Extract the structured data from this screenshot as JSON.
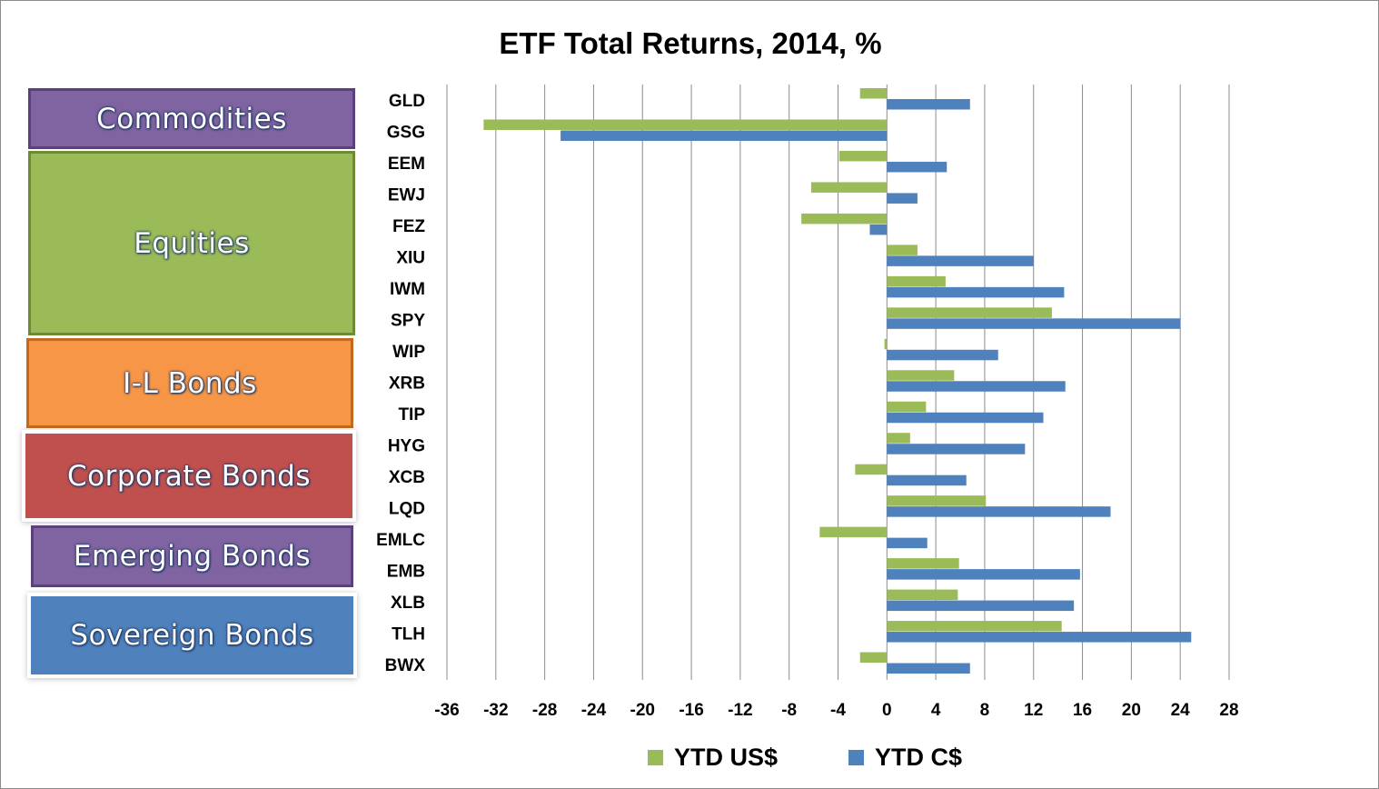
{
  "chart_data": {
    "type": "bar",
    "orientation": "horizontal",
    "title": "ETF Total Returns, 2014, %",
    "categories": [
      "GLD",
      "GSG",
      "EEM",
      "EWJ",
      "FEZ",
      "XIU",
      "IWM",
      "SPY",
      "WIP",
      "XRB",
      "TIP",
      "HYG",
      "XCB",
      "LQD",
      "EMLC",
      "EMB",
      "XLB",
      "TLH",
      "BWX"
    ],
    "series": [
      {
        "name": "YTD US$",
        "color": "#9bbb59",
        "values": [
          -2.2,
          -33.0,
          -3.9,
          -6.2,
          -7.0,
          2.5,
          4.8,
          13.5,
          -0.2,
          5.5,
          3.2,
          1.9,
          -2.6,
          8.1,
          -5.5,
          5.9,
          5.8,
          14.3,
          -2.2
        ]
      },
      {
        "name": "YTD C$",
        "color": "#4f81bd",
        "values": [
          6.8,
          -26.7,
          4.9,
          2.5,
          -1.4,
          12.0,
          14.5,
          24.0,
          9.1,
          14.6,
          12.8,
          11.3,
          6.5,
          18.3,
          3.3,
          15.8,
          15.3,
          24.9,
          6.8
        ]
      }
    ],
    "xlim": [
      -36,
      28
    ],
    "xticks": [
      -36,
      -32,
      -28,
      -24,
      -20,
      -16,
      -12,
      -8,
      -4,
      0,
      4,
      8,
      12,
      16,
      20,
      24,
      28
    ],
    "grid": "vertical",
    "legend": "bottom"
  },
  "groups": [
    {
      "label": "Commodities",
      "color": "#8064a2",
      "border": "#5b3f7f"
    },
    {
      "label": "Equities",
      "color": "#9bbb59",
      "border": "#6f8a35"
    },
    {
      "label": "I-L Bonds",
      "color": "#f79646",
      "border": "#c46a1e"
    },
    {
      "label": "Corporate Bonds",
      "color": "#c0504d",
      "border": "#c0504d"
    },
    {
      "label": "Emerging Bonds",
      "color": "#8064a2",
      "border": "#5b3f7f"
    },
    {
      "label": "Sovereign Bonds",
      "color": "#4f81bd",
      "border": "#4f81bd"
    }
  ]
}
